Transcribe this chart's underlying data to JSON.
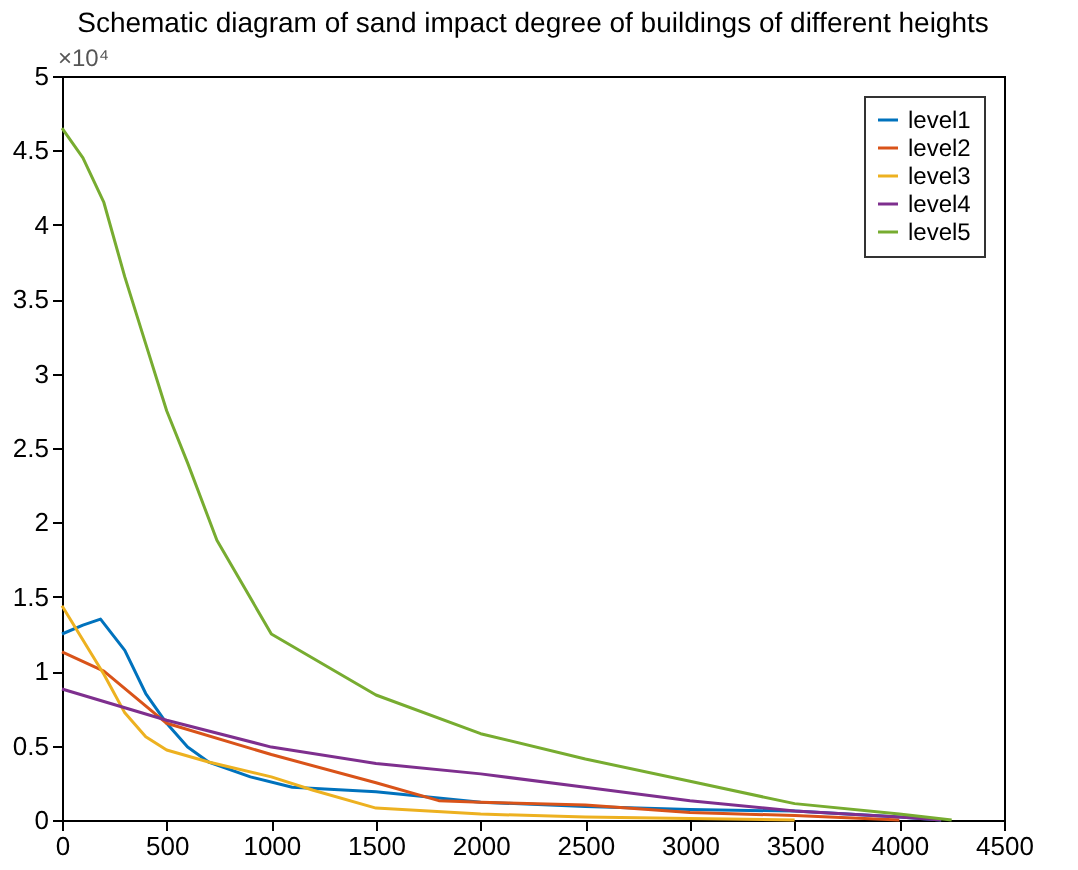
{
  "chart_data": {
    "type": "line",
    "title": "Schematic diagram of sand impact degree of buildings of different heights",
    "annotations": [
      "×10⁴"
    ],
    "xlim": [
      0,
      4500
    ],
    "xticks": [
      0,
      500,
      1000,
      1500,
      2000,
      2500,
      3000,
      3500,
      4000,
      4500
    ],
    "ylim": [
      0,
      5
    ],
    "yticks": [
      0,
      0.5,
      1,
      1.5,
      2,
      2.5,
      3,
      3.5,
      4,
      4.5,
      5
    ],
    "grid": false,
    "legend": "top right",
    "line_style": "solid",
    "marker": "none",
    "series": [
      {
        "name": "level1",
        "color": "#0072bd",
        "x": [
          0,
          100,
          184,
          300,
          400,
          500,
          600,
          700,
          900,
          1100,
          1500,
          2000,
          2500,
          3000,
          3500,
          4000,
          4200
        ],
        "values": [
          1.25,
          1.31,
          1.35,
          1.14,
          0.85,
          0.65,
          0.49,
          0.39,
          0.29,
          0.22,
          0.19,
          0.12,
          0.09,
          0.07,
          0.06,
          0.02,
          0
        ]
      },
      {
        "name": "level2",
        "color": "#d95319",
        "x": [
          0,
          200,
          500,
          1000,
          1500,
          1800,
          2000,
          2500,
          3000,
          3500,
          4000
        ],
        "values": [
          1.13,
          1.0,
          0.65,
          0.44,
          0.25,
          0.13,
          0.12,
          0.1,
          0.05,
          0.03,
          0
        ]
      },
      {
        "name": "level3",
        "color": "#edb120",
        "x": [
          0,
          200,
          300,
          400,
          500,
          700,
          1000,
          1200,
          1500,
          2000,
          2500,
          3000,
          3500
        ],
        "values": [
          1.44,
          0.98,
          0.72,
          0.56,
          0.47,
          0.39,
          0.29,
          0.2,
          0.08,
          0.04,
          0.02,
          0.01,
          0
        ]
      },
      {
        "name": "level4",
        "color": "#7e2f8e",
        "x": [
          0,
          500,
          1000,
          1500,
          2000,
          2500,
          3000,
          3500,
          4000,
          4200
        ],
        "values": [
          0.88,
          0.67,
          0.49,
          0.38,
          0.31,
          0.22,
          0.13,
          0.06,
          0.02,
          0
        ]
      },
      {
        "name": "level5",
        "color": "#77ac30",
        "x": [
          0,
          100,
          200,
          300,
          400,
          500,
          600,
          740,
          1000,
          1500,
          2000,
          2500,
          3000,
          3500,
          4000,
          4250
        ],
        "values": [
          4.65,
          4.45,
          4.15,
          3.65,
          3.2,
          2.75,
          2.4,
          1.88,
          1.25,
          0.84,
          0.58,
          0.41,
          0.26,
          0.11,
          0.04,
          0
        ]
      }
    ]
  }
}
